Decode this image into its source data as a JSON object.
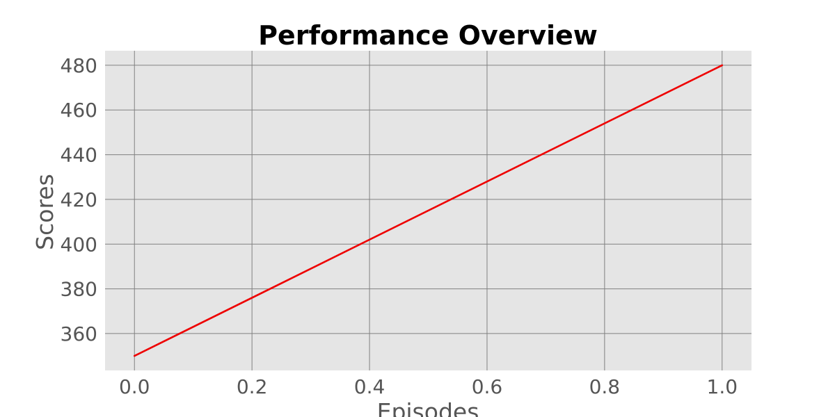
{
  "chart_data": {
    "type": "line",
    "title": "Performance Overview",
    "xlabel": "Episodes",
    "ylabel": "Scores",
    "x": [
      0.0,
      1.0
    ],
    "series": [
      {
        "values": [
          350,
          480
        ],
        "color": "#ee0000"
      }
    ],
    "xlim": [
      -0.05,
      1.05
    ],
    "ylim": [
      343.5,
      486.5
    ],
    "xticks": [
      0.0,
      0.2,
      0.4,
      0.6,
      0.8,
      1.0
    ],
    "xtick_labels": [
      "0.0",
      "0.2",
      "0.4",
      "0.6",
      "0.8",
      "1.0"
    ],
    "yticks": [
      360,
      380,
      400,
      420,
      440,
      460,
      480
    ],
    "ytick_labels": [
      "360",
      "380",
      "400",
      "420",
      "440",
      "460",
      "480"
    ],
    "grid": true,
    "background": "#e5e5e5",
    "grid_color": "#808080"
  }
}
